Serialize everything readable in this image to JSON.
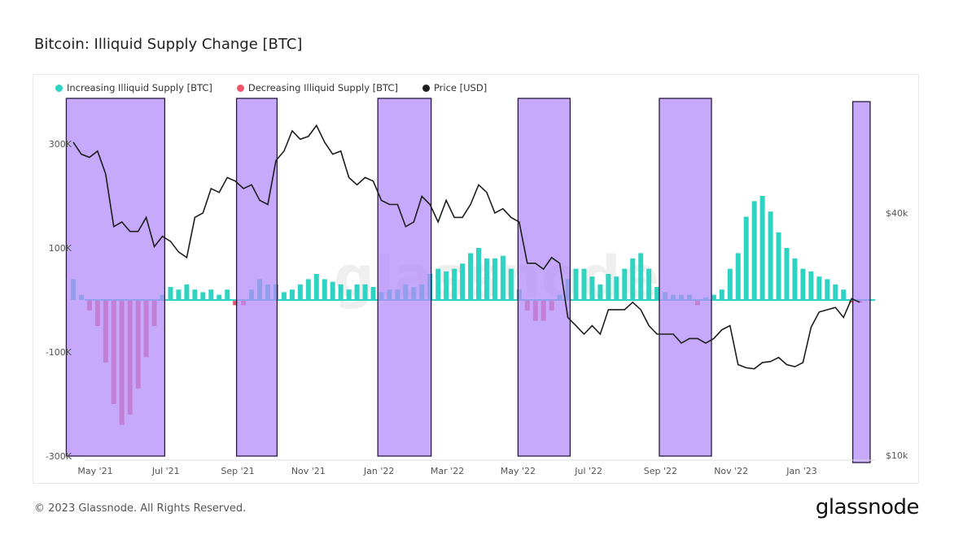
{
  "chart_data": {
    "type": "bar+line",
    "title": "Bitcoin: Illiquid Supply Change [BTC]",
    "legend_position": "top-left",
    "grid": false,
    "left_axis": {
      "ticks": [
        "300K",
        "100K",
        "-100K",
        "-300K"
      ],
      "tick_values": [
        300000,
        100000,
        -100000,
        -300000
      ],
      "range": [
        -300000,
        300000
      ]
    },
    "right_axis": {
      "scale": "log",
      "ticks": [
        "$40k",
        "$10k"
      ],
      "tick_values": [
        40000,
        10000
      ]
    },
    "x_ticks": [
      "May '21",
      "Jul '21",
      "Sep '21",
      "Nov '21",
      "Jan '22",
      "Mar '22",
      "May '22",
      "Jul '22",
      "Sep '22",
      "Nov '22",
      "Jan '23"
    ],
    "x_tick_dates": [
      "2021-05-01",
      "2021-07-01",
      "2021-09-01",
      "2021-11-01",
      "2022-01-01",
      "2022-03-01",
      "2022-05-01",
      "2022-07-01",
      "2022-09-01",
      "2022-11-01",
      "2023-01-01"
    ],
    "x_start": "2021-04-12",
    "x_step_days": 7,
    "series": [
      {
        "name": "Increasing Illiquid Supply [BTC]",
        "color": "#2fd3c2",
        "kind": "bar-positive"
      },
      {
        "name": "Decreasing Illiquid Supply [BTC]",
        "color": "#f0556b",
        "kind": "bar-negative"
      },
      {
        "name": "Price [USD]",
        "color": "#1e1e1e",
        "kind": "line"
      }
    ],
    "supply_change": [
      40000,
      10000,
      -20000,
      -50000,
      -120000,
      -200000,
      -240000,
      -220000,
      -170000,
      -110000,
      -50000,
      10000,
      25000,
      20000,
      30000,
      20000,
      15000,
      20000,
      10000,
      20000,
      -10000,
      -10000,
      20000,
      40000,
      30000,
      30000,
      15000,
      20000,
      30000,
      40000,
      50000,
      40000,
      35000,
      30000,
      20000,
      30000,
      30000,
      25000,
      15000,
      20000,
      20000,
      30000,
      25000,
      30000,
      50000,
      60000,
      55000,
      60000,
      70000,
      90000,
      100000,
      80000,
      80000,
      85000,
      60000,
      20000,
      -20000,
      -40000,
      -40000,
      -20000,
      10000,
      40000,
      60000,
      60000,
      45000,
      30000,
      50000,
      45000,
      60000,
      80000,
      90000,
      60000,
      25000,
      15000,
      10000,
      10000,
      10000,
      -10000,
      5000,
      10000,
      20000,
      60000,
      90000,
      160000,
      190000,
      200000,
      170000,
      130000,
      100000,
      80000,
      60000,
      55000,
      45000,
      40000,
      30000,
      20000,
      -5000,
      -5000
    ],
    "price": [
      60000,
      56000,
      55000,
      57000,
      50000,
      37000,
      38000,
      36000,
      36000,
      39000,
      33000,
      35000,
      34000,
      32000,
      31000,
      39000,
      40000,
      46000,
      45000,
      49000,
      48000,
      46000,
      47000,
      43000,
      42000,
      54000,
      57000,
      64000,
      61000,
      62000,
      66000,
      60000,
      56000,
      57000,
      49000,
      47000,
      49000,
      48000,
      43000,
      42000,
      42000,
      37000,
      38000,
      44000,
      42000,
      38000,
      43000,
      39000,
      39000,
      42000,
      47000,
      45000,
      40000,
      41000,
      39000,
      38000,
      30000,
      30000,
      29000,
      31000,
      30000,
      22000,
      21000,
      20000,
      21000,
      20000,
      23000,
      23000,
      23000,
      24000,
      23000,
      21000,
      20000,
      20000,
      20000,
      19000,
      19500,
      19500,
      19000,
      19500,
      20500,
      21000,
      16800,
      16500,
      16400,
      17000,
      17100,
      17500,
      16800,
      16600,
      17000,
      20800,
      22700,
      23000,
      23300,
      22000,
      24500,
      24000
    ],
    "highlight_periods": [
      [
        "2021-04-06",
        "2021-06-30"
      ],
      [
        "2021-08-31",
        "2021-10-05"
      ],
      [
        "2021-12-31",
        "2022-02-15"
      ],
      [
        "2022-05-01",
        "2022-06-15"
      ],
      [
        "2022-08-31",
        "2022-10-15"
      ],
      [
        "2023-02-14",
        "2023-03-01"
      ]
    ],
    "highlight_color": "#b48cfa"
  },
  "footer": {
    "copyright": "© 2023 Glassnode. All Rights Reserved.",
    "brand": "glassnode"
  },
  "watermark": "glassnode"
}
